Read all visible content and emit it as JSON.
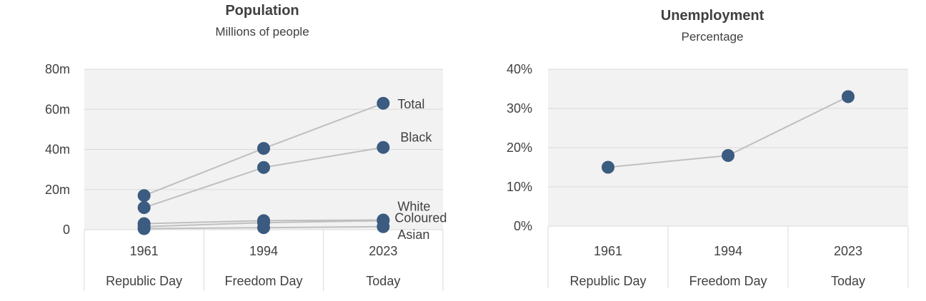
{
  "colors": {
    "plot_bg": "#f2f2f2",
    "grid": "#d9d9d9",
    "line": "#bfbfbf",
    "marker": "#3b5b80",
    "text": "#404040",
    "axis_border": "#d9d9d9"
  },
  "chart_data": [
    {
      "type": "line",
      "title": "Population",
      "subtitle": "Millions of people",
      "categories": [
        "1961",
        "1994",
        "2023"
      ],
      "category_sublabels": [
        "Republic Day",
        "Freedom Day",
        "Today"
      ],
      "ylim": [
        0,
        80
      ],
      "yticks": [
        0,
        20,
        40,
        60,
        80
      ],
      "ytick_labels": [
        "0",
        "20m",
        "40m",
        "60m",
        "80m"
      ],
      "grid": true,
      "series": [
        {
          "name": "Total",
          "values": [
            17,
            40.5,
            63
          ]
        },
        {
          "name": "Black",
          "values": [
            11,
            31,
            41
          ]
        },
        {
          "name": "White",
          "values": [
            3,
            4.5,
            4.8
          ]
        },
        {
          "name": "Coloured",
          "values": [
            1.5,
            3.5,
            4.5
          ]
        },
        {
          "name": "Asian",
          "values": [
            0.5,
            1,
            1.5
          ]
        }
      ]
    },
    {
      "type": "line",
      "title": "Unemployment",
      "subtitle": "Percentage",
      "categories": [
        "1961",
        "1994",
        "2023"
      ],
      "category_sublabels": [
        "Republic Day",
        "Freedom Day",
        "Today"
      ],
      "ylim": [
        0,
        40
      ],
      "yticks": [
        0,
        10,
        20,
        30,
        40
      ],
      "ytick_labels": [
        "0%",
        "10%",
        "20%",
        "30%",
        "40%"
      ],
      "grid": true,
      "series": [
        {
          "values": [
            15,
            18,
            33
          ]
        }
      ]
    }
  ]
}
